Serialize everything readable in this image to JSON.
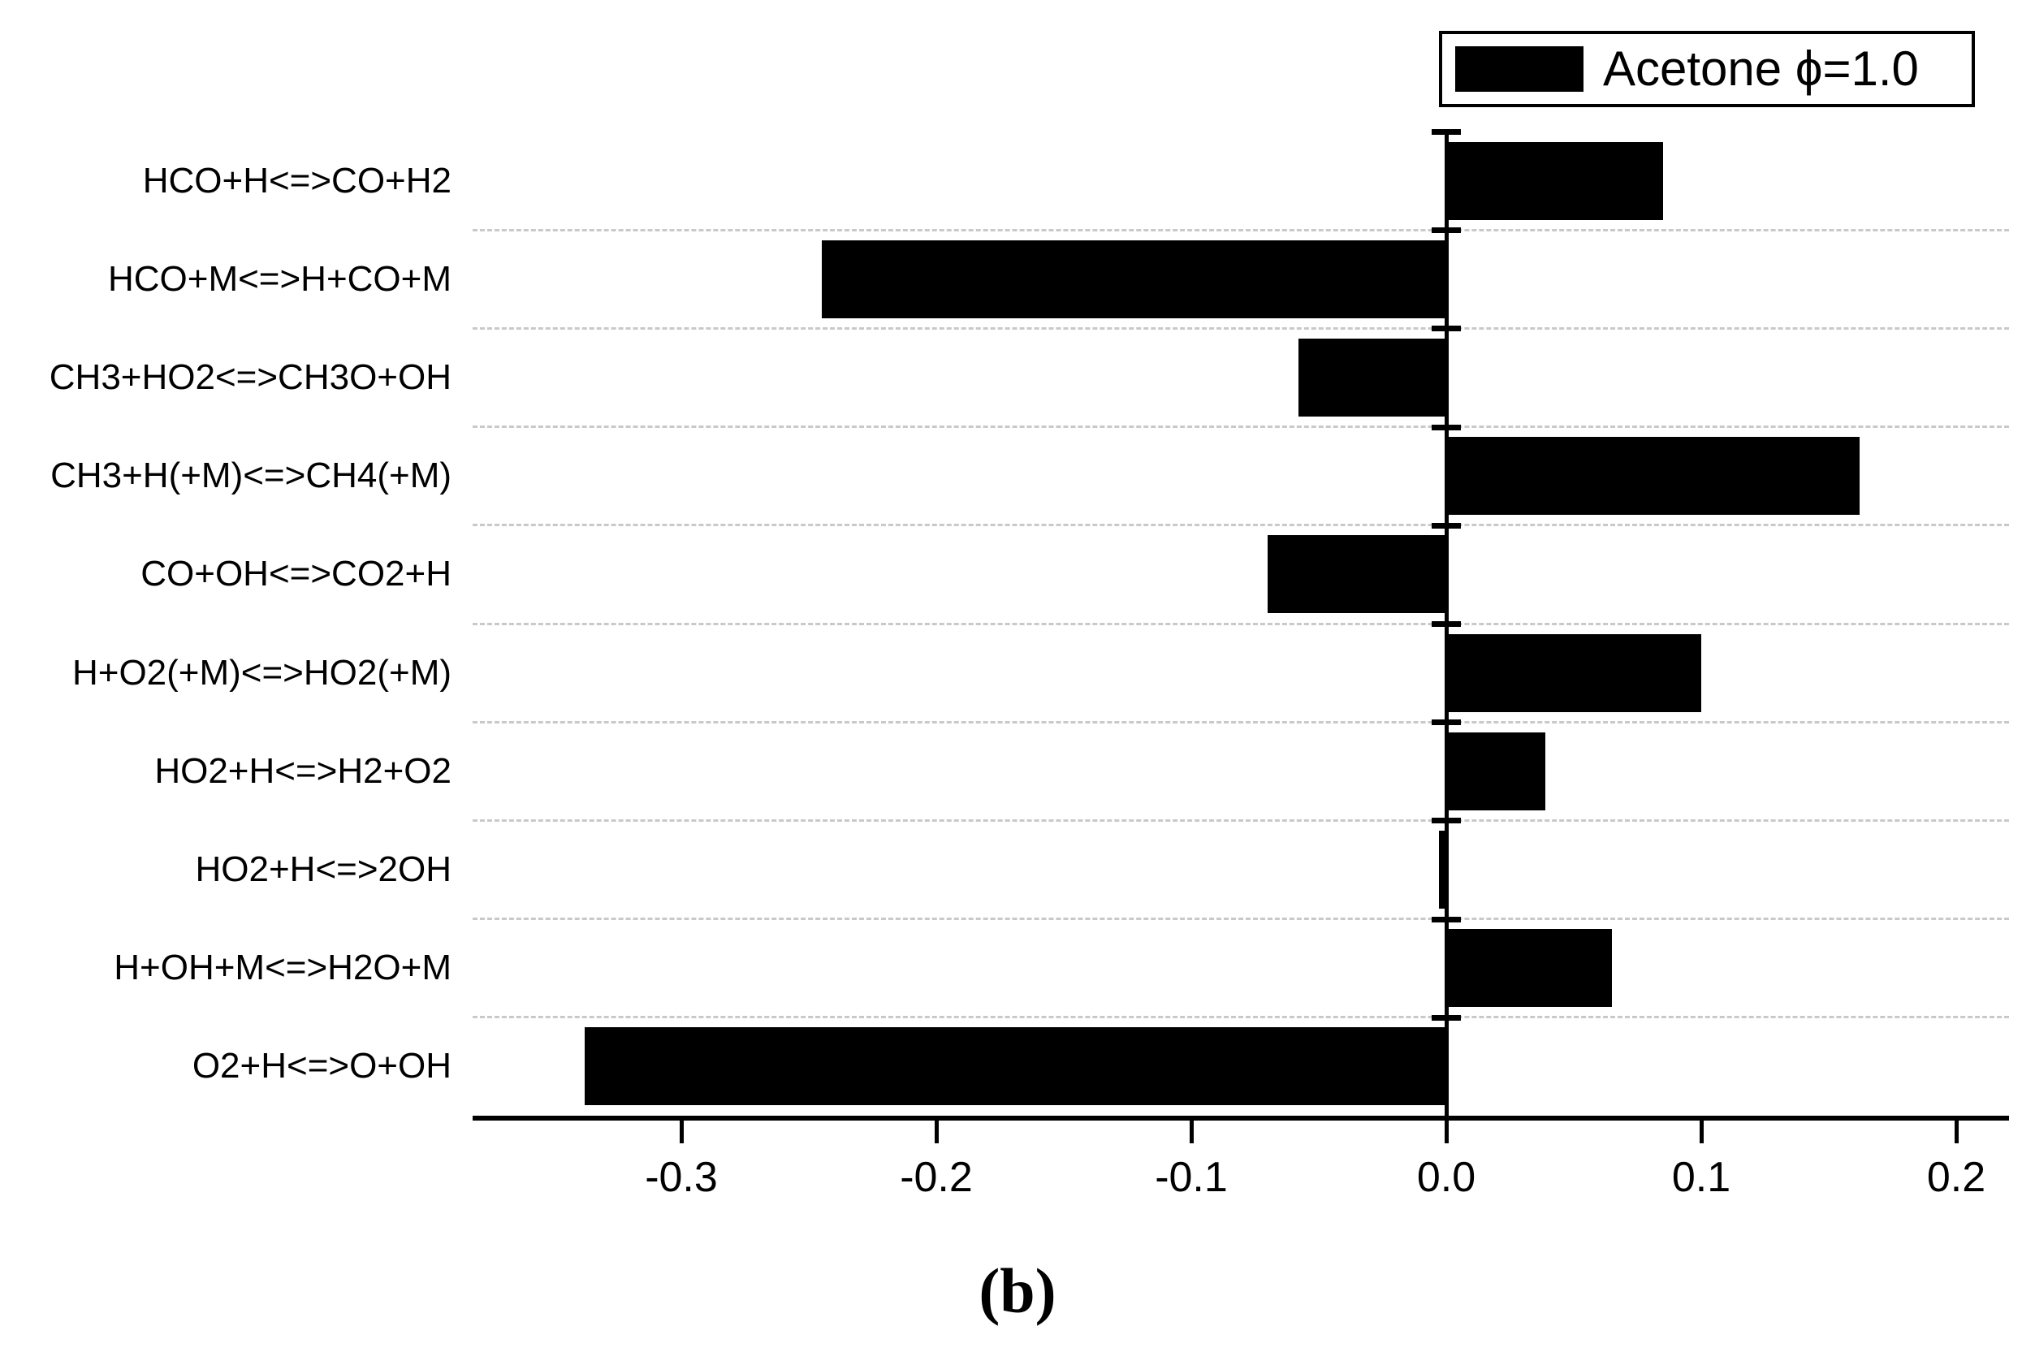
{
  "figure": {
    "background": "#ffffff",
    "caption": "(b)"
  },
  "legend": {
    "label": "Acetone ϕ=1.0",
    "swatch_color": "#000000",
    "position": "top-right"
  },
  "chart_data": {
    "type": "bar",
    "orientation": "horizontal",
    "title": "",
    "xlabel": "",
    "ylabel": "",
    "bar_color": "#000000",
    "grid": "dashed category-separator lines, light gray",
    "legend_position": "top-right",
    "categories": [
      "HCO+H<=>CO+H2",
      "HCO+M<=>H+CO+M",
      "CH3+HO2<=>CH3O+OH",
      "CH3+H(+M)<=>CH4(+M)",
      "CO+OH<=>CO2+H",
      "H+O2(+M)<=>HO2(+M)",
      "HO2+H<=>H2+O2",
      "HO2+H<=>2OH",
      "H+OH+M<=>H2O+M",
      "O2+H<=>O+OH"
    ],
    "series": [
      {
        "name": "Acetone ϕ=1.0",
        "values": [
          0.085,
          -0.245,
          -0.058,
          0.162,
          -0.07,
          0.1,
          0.039,
          -0.003,
          0.065,
          -0.338
        ]
      }
    ],
    "x_ticks": [
      -0.3,
      -0.2,
      -0.1,
      0.0,
      0.1,
      0.2
    ],
    "x_tick_labels": [
      "-0.3",
      "-0.2",
      "-0.1",
      "0.0",
      "0.1",
      "0.2"
    ],
    "xlim": [
      -0.382,
      0.221
    ]
  }
}
